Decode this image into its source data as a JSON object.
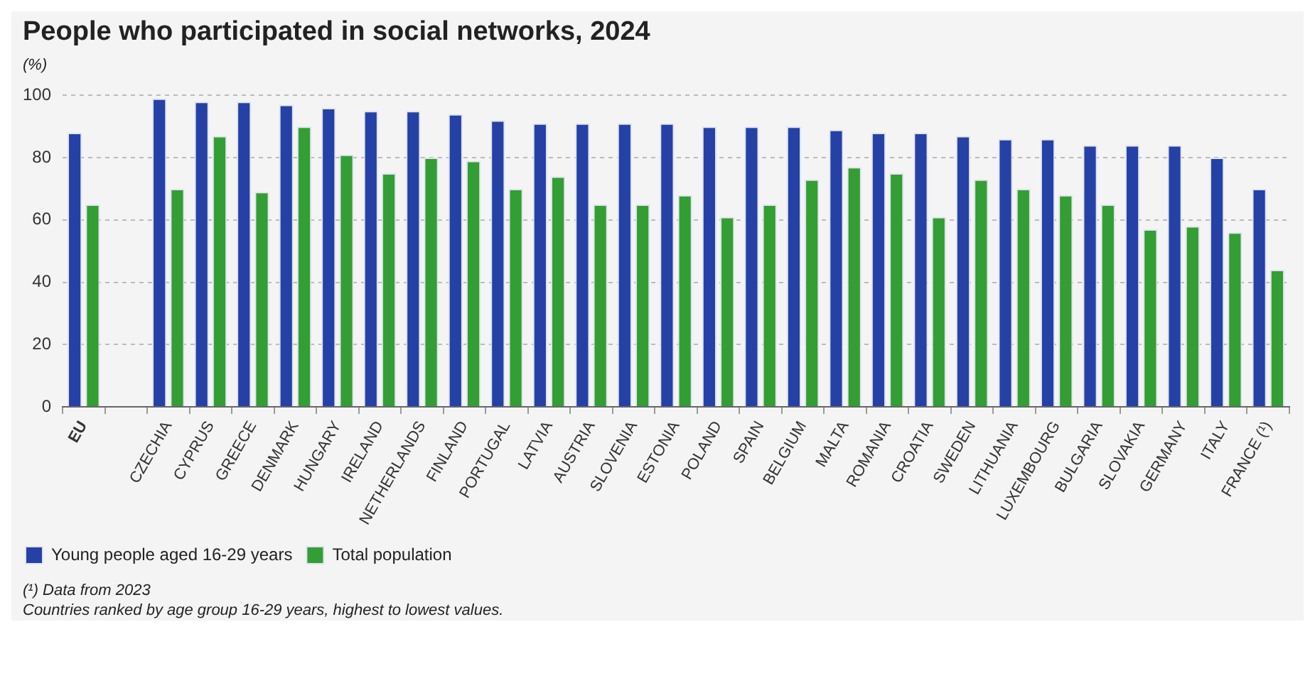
{
  "chart_data": {
    "type": "bar",
    "title": "People who participated in social networks, 2024",
    "ylabel": "(%)",
    "categories": [
      "EU",
      null,
      "CZECHIA",
      "CYPRUS",
      "GREECE",
      "DENMARK",
      "HUNGARY",
      "IRELAND",
      "NETHERLANDS",
      "FINLAND",
      "PORTUGAL",
      "LATVIA",
      "AUSTRIA",
      "SLOVENIA",
      "ESTONIA",
      "POLAND",
      "SPAIN",
      "BELGIUM",
      "MALTA",
      "ROMANIA",
      "CROATIA",
      "SWEDEN",
      "LITHUANIA",
      "LUXEMBOURG",
      "BULGARIA",
      "SLOVAKIA",
      "GERMANY",
      "ITALY",
      "FRANCE (¹)"
    ],
    "series": [
      {
        "name": "Young people aged 16-29 years",
        "color": "#2541a6",
        "values": [
          88,
          null,
          99,
          98,
          98,
          97,
          96,
          95,
          95,
          94,
          92,
          91,
          91,
          91,
          91,
          90,
          90,
          90,
          89,
          88,
          88,
          87,
          86,
          86,
          84,
          84,
          84,
          80,
          70
        ]
      },
      {
        "name": "Total population",
        "color": "#339e33",
        "values": [
          65,
          null,
          70,
          87,
          69,
          90,
          81,
          75,
          80,
          79,
          70,
          74,
          65,
          65,
          68,
          61,
          65,
          73,
          77,
          75,
          61,
          73,
          70,
          68,
          65,
          57,
          58,
          56,
          44
        ]
      }
    ],
    "ylim": [
      0,
      100
    ],
    "yticks": [
      0,
      20,
      40,
      60,
      80,
      100
    ],
    "grid": "y",
    "legend": "bottom left",
    "annotations": [
      "(¹) Data from 2023",
      "Countries ranked by age group 16-29 years, highest to lowest values."
    ]
  }
}
